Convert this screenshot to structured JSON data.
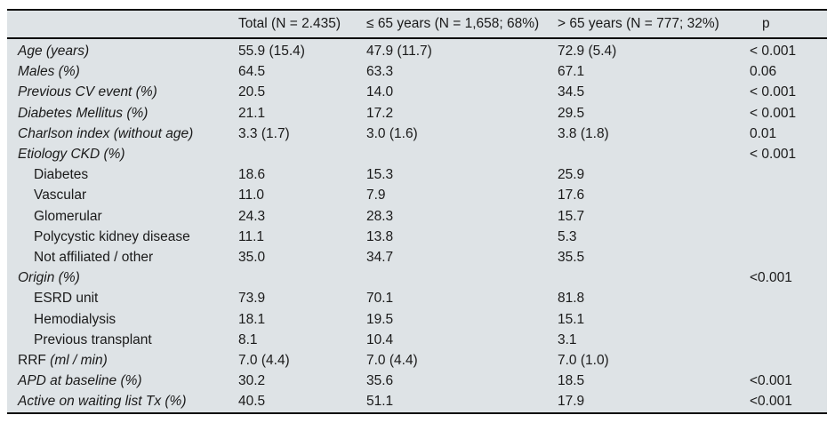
{
  "table": {
    "background_color": "#dee3e6",
    "rule_color": "#0d0d0d",
    "text_color": "#1a1a1a",
    "columns": [
      {
        "label": ""
      },
      {
        "label": "Total (N = 2.435)"
      },
      {
        "label": "≤ 65 years (N = 1,658; 68%)"
      },
      {
        "label": "> 65 years (N = 777; 32%)"
      },
      {
        "label": "p"
      }
    ],
    "rows": [
      {
        "label_upright": "",
        "label_italic": "Age (years)",
        "indent": false,
        "total": "55.9 (15.4)",
        "le65": "47.9 (11.7)",
        "gt65": "72.9 (5.4)",
        "p": "< 0.001"
      },
      {
        "label_upright": "",
        "label_italic": "Males (%)",
        "indent": false,
        "total": "64.5",
        "le65": "63.3",
        "gt65": "67.1",
        "p": "0.06"
      },
      {
        "label_upright": "",
        "label_italic": "Previous CV event (%)",
        "indent": false,
        "total": "20.5",
        "le65": "14.0",
        "gt65": "34.5",
        "p": "< 0.001"
      },
      {
        "label_upright": "",
        "label_italic": "Diabetes Mellitus (%)",
        "indent": false,
        "total": "21.1",
        "le65": "17.2",
        "gt65": "29.5",
        "p": "< 0.001"
      },
      {
        "label_upright": "",
        "label_italic": "Charlson index (without age)",
        "indent": false,
        "total": "3.3 (1.7)",
        "le65": "3.0 (1.6)",
        "gt65": "3.8 (1.8)",
        "p": "0.01"
      },
      {
        "label_upright": "",
        "label_italic": "Etiology CKD (%)",
        "indent": false,
        "total": "",
        "le65": "",
        "gt65": "",
        "p": "< 0.001"
      },
      {
        "label_upright": "Diabetes",
        "label_italic": "",
        "indent": true,
        "total": "18.6",
        "le65": "15.3",
        "gt65": "25.9",
        "p": ""
      },
      {
        "label_upright": "Vascular",
        "label_italic": "",
        "indent": true,
        "total": "11.0",
        "le65": "7.9",
        "gt65": "17.6",
        "p": ""
      },
      {
        "label_upright": "Glomerular",
        "label_italic": "",
        "indent": true,
        "total": "24.3",
        "le65": "28.3",
        "gt65": "15.7",
        "p": ""
      },
      {
        "label_upright": "Polycystic kidney disease",
        "label_italic": "",
        "indent": true,
        "total": "11.1",
        "le65": "13.8",
        "gt65": "5.3",
        "p": ""
      },
      {
        "label_upright": "Not affiliated / other",
        "label_italic": "",
        "indent": true,
        "total": "35.0",
        "le65": "34.7",
        "gt65": "35.5",
        "p": ""
      },
      {
        "label_upright": "",
        "label_italic": "Origin (%)",
        "indent": false,
        "total": "",
        "le65": "",
        "gt65": "",
        "p": "<0.001"
      },
      {
        "label_upright": "ESRD unit",
        "label_italic": "",
        "indent": true,
        "total": "73.9",
        "le65": "70.1",
        "gt65": "81.8",
        "p": ""
      },
      {
        "label_upright": "Hemodialysis",
        "label_italic": "",
        "indent": true,
        "total": "18.1",
        "le65": "19.5",
        "gt65": "15.1",
        "p": ""
      },
      {
        "label_upright": "Previous transplant",
        "label_italic": "",
        "indent": true,
        "total": "8.1",
        "le65": "10.4",
        "gt65": "3.1",
        "p": ""
      },
      {
        "label_upright": "RRF ",
        "label_italic": "(ml / min)",
        "indent": false,
        "total": "7.0 (4.4)",
        "le65": "7.0 (4.4)",
        "gt65": "7.0 (1.0)",
        "p": ""
      },
      {
        "label_upright": "",
        "label_italic": "APD at baseline (%)",
        "indent": false,
        "total": "30.2",
        "le65": "35.6",
        "gt65": "18.5",
        "p": "<0.001"
      },
      {
        "label_upright": "",
        "label_italic": "Active on waiting list Tx (%)",
        "indent": false,
        "total": "40.5",
        "le65": "51.1",
        "gt65": "17.9",
        "p": "<0.001"
      }
    ]
  }
}
